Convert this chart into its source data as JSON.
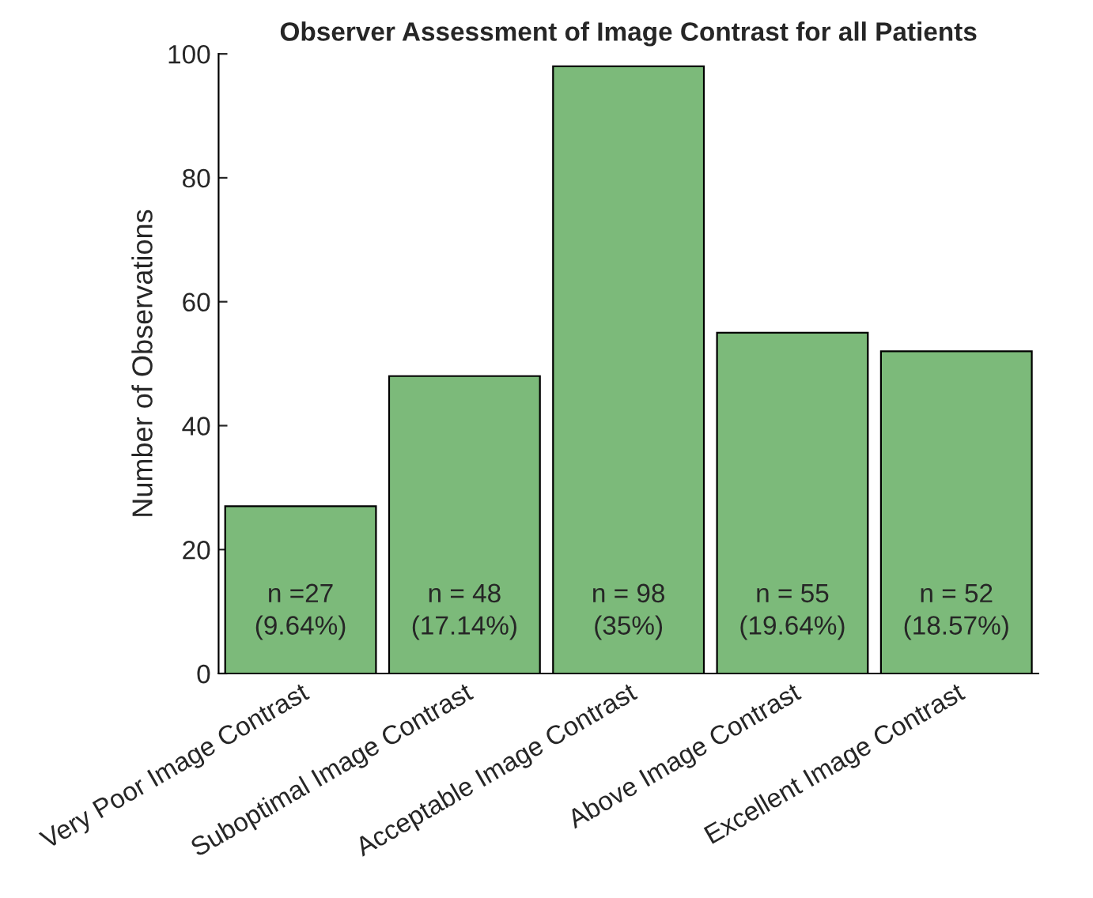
{
  "chart_data": {
    "type": "bar",
    "title": "Observer Assessment of Image Contrast for all Patients",
    "ylabel": "Number of Observations",
    "categories": [
      "Very Poor Image Contrast",
      "Suboptimal Image Contrast",
      "Acceptable Image Contrast",
      "Above Image Contrast",
      "Excellent Image Contrast"
    ],
    "values": [
      27,
      48,
      98,
      55,
      52
    ],
    "value_labels": [
      "n =27\n(9.64%)",
      "n = 48\n(17.14%)",
      "n = 98\n(35%)",
      "n = 55\n(19.64%)",
      "n = 52\n(18.57%)"
    ],
    "color": "#7cba7a",
    "ylim": [
      0,
      100
    ],
    "yticks": [
      0,
      20,
      40,
      60,
      80,
      100
    ],
    "grid": false
  }
}
